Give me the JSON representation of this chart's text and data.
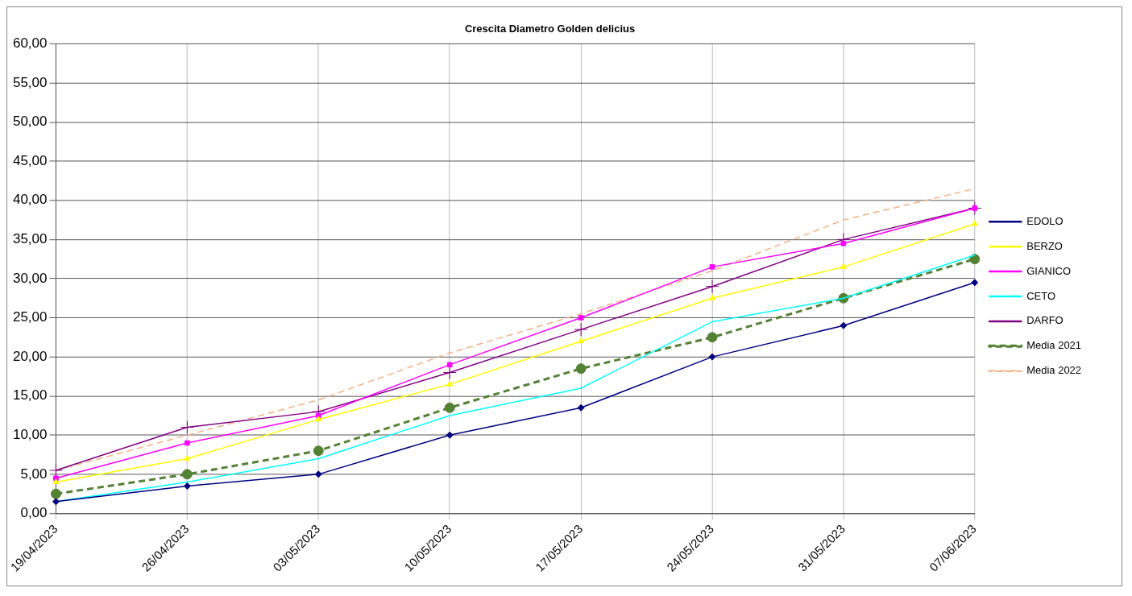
{
  "chart_data": {
    "type": "line",
    "title": "Crescita Diametro Golden delicius",
    "categories": [
      "19/04/2023",
      "26/04/2023",
      "03/05/2023",
      "10/05/2023",
      "17/05/2023",
      "24/05/2023",
      "31/05/2023",
      "07/06/2023"
    ],
    "series": [
      {
        "name": "EDOLO",
        "color": "#000080",
        "marker": "diamond",
        "line_style": "solid",
        "values": [
          1.5,
          3.5,
          5,
          10,
          13.5,
          20,
          24,
          29.5
        ]
      },
      {
        "name": "BERZO",
        "color": "#ffff00",
        "marker": "triangle",
        "line_style": "solid",
        "values": [
          4,
          7,
          12,
          16.5,
          22,
          27.5,
          31.5,
          37
        ]
      },
      {
        "name": "GIANICO",
        "color": "#ff00ff",
        "marker": "square",
        "line_style": "solid",
        "values": [
          4.5,
          9,
          12.5,
          19,
          25,
          31.5,
          34.5,
          39
        ]
      },
      {
        "name": "CETO",
        "color": "#00ffff",
        "marker": "none",
        "line_style": "solid",
        "values": [
          1.5,
          4,
          7,
          12.5,
          16,
          24.5,
          27.5,
          33
        ]
      },
      {
        "name": "DARFO",
        "color": "#800080",
        "marker": "cross",
        "line_style": "solid",
        "values": [
          5.5,
          11,
          13,
          18,
          23.5,
          29,
          35,
          39
        ]
      },
      {
        "name": "Media 2021",
        "color": "#548235",
        "marker": "circle",
        "line_style": "dashed",
        "values": [
          2.5,
          5,
          8,
          13.5,
          18.5,
          22.5,
          27.5,
          32.5
        ]
      },
      {
        "name": "Media 2022",
        "color": "#f4b183",
        "marker": "none",
        "line_style": "dashed",
        "values": [
          5.5,
          10,
          14.5,
          20.5,
          25.5,
          31,
          37.5,
          41.5
        ]
      }
    ],
    "ylim": [
      0,
      60
    ],
    "yticks": [
      {
        "value": 0,
        "label": "0,00"
      },
      {
        "value": 5,
        "label": "5,00"
      },
      {
        "value": 10,
        "label": "10,00"
      },
      {
        "value": 15,
        "label": "15,00"
      },
      {
        "value": 20,
        "label": "20,00"
      },
      {
        "value": 25,
        "label": "25,00"
      },
      {
        "value": 30,
        "label": "30,00"
      },
      {
        "value": 35,
        "label": "35,00"
      },
      {
        "value": 40,
        "label": "40,00"
      },
      {
        "value": 45,
        "label": "45,00"
      },
      {
        "value": 50,
        "label": "50,00"
      },
      {
        "value": 55,
        "label": "55,00"
      },
      {
        "value": 60,
        "label": "60,00"
      }
    ],
    "grid": true,
    "legend": "right"
  }
}
